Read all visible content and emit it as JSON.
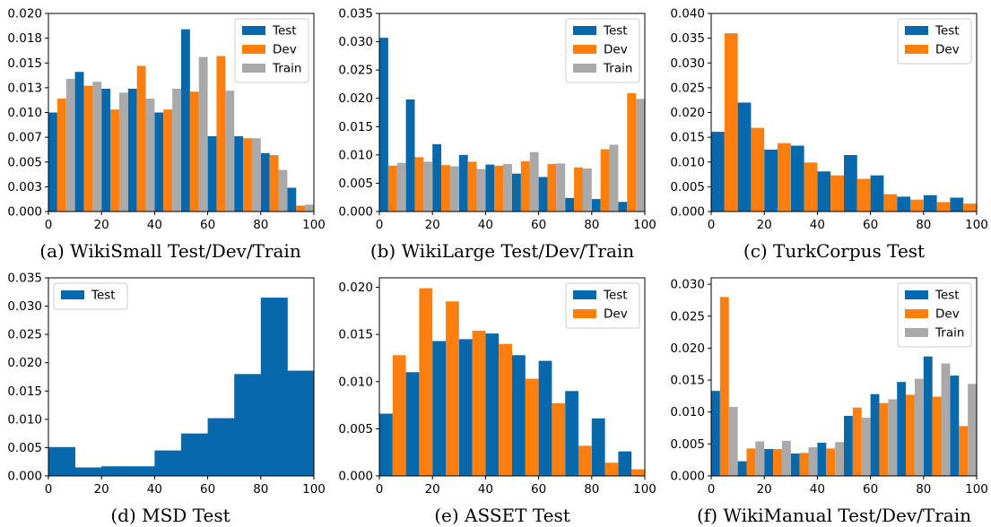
{
  "colors": {
    "Test": "#0868ac",
    "Dev": "#ff7f0e",
    "Train": "#a9a9a9"
  },
  "chart_data": [
    {
      "type": "bar",
      "caption": "(a) WikiSmall Test/Dev/Train",
      "x": [
        0,
        10,
        20,
        30,
        40,
        50,
        60,
        70,
        80,
        90
      ],
      "bin_width": 10,
      "xticks": [
        0,
        20,
        40,
        60,
        80,
        100
      ],
      "xtick_labels": [
        "0",
        "20",
        "40",
        "60",
        "80",
        "100"
      ],
      "ylim": [
        0,
        0.02
      ],
      "yticks": [
        0,
        0.0025,
        0.005,
        0.0075,
        0.01,
        0.0125,
        0.015,
        0.0175,
        0.02
      ],
      "ytick_labels": [
        "0.000",
        "0.003",
        "0.005",
        "0.007",
        "0.010",
        "0.013",
        "0.015",
        "0.018",
        "0.020"
      ],
      "legend_position": "top-right",
      "series": [
        {
          "name": "Test",
          "values": [
            0.01,
            0.0141,
            0.0124,
            0.0124,
            0.01,
            0.0184,
            0.0076,
            0.0076,
            0.0059,
            0.0024
          ]
        },
        {
          "name": "Dev",
          "values": [
            0.0114,
            0.0127,
            0.0103,
            0.0147,
            0.0103,
            0.0121,
            0.0157,
            0.0074,
            0.0057,
            0.0006
          ]
        },
        {
          "name": "Train",
          "values": [
            0.0134,
            0.0131,
            0.012,
            0.0114,
            0.0124,
            0.0156,
            0.0122,
            0.0074,
            0.0042,
            0.0007
          ]
        }
      ]
    },
    {
      "type": "bar",
      "caption": "(b) WikiLarge Test/Dev/Train",
      "x": [
        0,
        10,
        20,
        30,
        40,
        50,
        60,
        70,
        80,
        90
      ],
      "bin_width": 10,
      "xticks": [
        0,
        20,
        40,
        60,
        80,
        100
      ],
      "xtick_labels": [
        "0",
        "20",
        "40",
        "60",
        "80",
        "100"
      ],
      "ylim": [
        0,
        0.035
      ],
      "yticks": [
        0,
        0.005,
        0.01,
        0.015,
        0.02,
        0.025,
        0.03,
        0.035
      ],
      "ytick_labels": [
        "0.000",
        "0.005",
        "0.010",
        "0.015",
        "0.020",
        "0.025",
        "0.030",
        "0.035"
      ],
      "legend_position": "top-right",
      "series": [
        {
          "name": "Test",
          "values": [
            0.0307,
            0.0198,
            0.0119,
            0.01,
            0.0083,
            0.0067,
            0.0061,
            0.0024,
            0.0022,
            0.0017
          ]
        },
        {
          "name": "Dev",
          "values": [
            0.0081,
            0.0096,
            0.0082,
            0.0088,
            0.0081,
            0.0089,
            0.0084,
            0.0078,
            0.011,
            0.0209
          ]
        },
        {
          "name": "Train",
          "values": [
            0.0086,
            0.0088,
            0.008,
            0.0075,
            0.0084,
            0.0105,
            0.0085,
            0.0076,
            0.0118,
            0.0199
          ]
        }
      ]
    },
    {
      "type": "bar",
      "caption": "(c) TurkCorpus Test",
      "x": [
        0,
        10,
        20,
        30,
        40,
        50,
        60,
        70,
        80,
        90
      ],
      "bin_width": 10,
      "xticks": [
        0,
        20,
        40,
        60,
        80,
        100
      ],
      "xtick_labels": [
        "0",
        "20",
        "40",
        "60",
        "80",
        "100"
      ],
      "ylim": [
        0,
        0.04
      ],
      "yticks": [
        0,
        0.005,
        0.01,
        0.015,
        0.02,
        0.025,
        0.03,
        0.035,
        0.04
      ],
      "ytick_labels": [
        "0.000",
        "0.005",
        "0.010",
        "0.015",
        "0.020",
        "0.025",
        "0.030",
        "0.035",
        "0.040"
      ],
      "legend_position": "top-right",
      "series": [
        {
          "name": "Test",
          "values": [
            0.0161,
            0.022,
            0.0125,
            0.0133,
            0.0081,
            0.0114,
            0.0073,
            0.003,
            0.0033,
            0.0028
          ]
        },
        {
          "name": "Dev",
          "values": [
            0.036,
            0.0169,
            0.0138,
            0.0099,
            0.0073,
            0.0066,
            0.0035,
            0.0024,
            0.0019,
            0.0016
          ]
        }
      ]
    },
    {
      "type": "bar",
      "caption": "(d) MSD Test",
      "x": [
        0,
        10,
        20,
        30,
        40,
        50,
        60,
        70,
        80,
        90
      ],
      "bin_width": 10,
      "full_width_bars": true,
      "xticks": [
        0,
        20,
        40,
        60,
        80,
        100
      ],
      "xtick_labels": [
        "0",
        "20",
        "40",
        "60",
        "80",
        "100"
      ],
      "ylim": [
        0,
        0.035
      ],
      "yticks": [
        0,
        0.005,
        0.01,
        0.015,
        0.02,
        0.025,
        0.03,
        0.035
      ],
      "ytick_labels": [
        "0.000",
        "0.005",
        "0.010",
        "0.015",
        "0.020",
        "0.025",
        "0.030",
        "0.035"
      ],
      "legend_position": "top-left",
      "series": [
        {
          "name": "Test",
          "values": [
            0.0051,
            0.0015,
            0.0017,
            0.0017,
            0.0045,
            0.0075,
            0.0102,
            0.018,
            0.0315,
            0.0186
          ]
        }
      ]
    },
    {
      "type": "bar",
      "caption": "(e) ASSET Test",
      "x": [
        0,
        10,
        20,
        30,
        40,
        50,
        60,
        70,
        80,
        90
      ],
      "bin_width": 10,
      "xticks": [
        0,
        20,
        40,
        60,
        80,
        100
      ],
      "xtick_labels": [
        "0",
        "20",
        "40",
        "60",
        "80",
        "100"
      ],
      "ylim": [
        0,
        0.021
      ],
      "yticks": [
        0,
        0.005,
        0.01,
        0.015,
        0.02
      ],
      "ytick_labels": [
        "0.000",
        "0.005",
        "0.010",
        "0.015",
        "0.020"
      ],
      "legend_position": "top-right",
      "series": [
        {
          "name": "Test",
          "values": [
            0.0066,
            0.011,
            0.0143,
            0.0145,
            0.0151,
            0.0128,
            0.0122,
            0.009,
            0.0061,
            0.0026
          ]
        },
        {
          "name": "Dev",
          "values": [
            0.0128,
            0.0199,
            0.0185,
            0.0154,
            0.014,
            0.0103,
            0.0077,
            0.0032,
            0.0014,
            0.0007
          ]
        }
      ]
    },
    {
      "type": "bar",
      "caption": "(f) WikiManual Test/Dev/Train",
      "x": [
        0,
        10,
        20,
        30,
        40,
        50,
        60,
        70,
        80,
        90
      ],
      "bin_width": 10,
      "xticks": [
        0,
        20,
        40,
        60,
        80,
        100
      ],
      "xtick_labels": [
        "0",
        "20",
        "40",
        "60",
        "80",
        "100"
      ],
      "ylim": [
        0,
        0.031
      ],
      "yticks": [
        0,
        0.005,
        0.01,
        0.015,
        0.02,
        0.025,
        0.03
      ],
      "ytick_labels": [
        "0.000",
        "0.005",
        "0.010",
        "0.015",
        "0.020",
        "0.025",
        "0.030"
      ],
      "legend_position": "top-right",
      "series": [
        {
          "name": "Test",
          "values": [
            0.0133,
            0.0023,
            0.0042,
            0.0035,
            0.0052,
            0.0094,
            0.0128,
            0.0147,
            0.0187,
            0.0157
          ]
        },
        {
          "name": "Dev",
          "values": [
            0.028,
            0.0043,
            0.0042,
            0.0036,
            0.0043,
            0.0107,
            0.0114,
            0.0127,
            0.0124,
            0.0078
          ]
        },
        {
          "name": "Train",
          "values": [
            0.0108,
            0.0054,
            0.0055,
            0.0045,
            0.0053,
            0.0091,
            0.012,
            0.0152,
            0.0176,
            0.0144
          ]
        }
      ]
    }
  ]
}
